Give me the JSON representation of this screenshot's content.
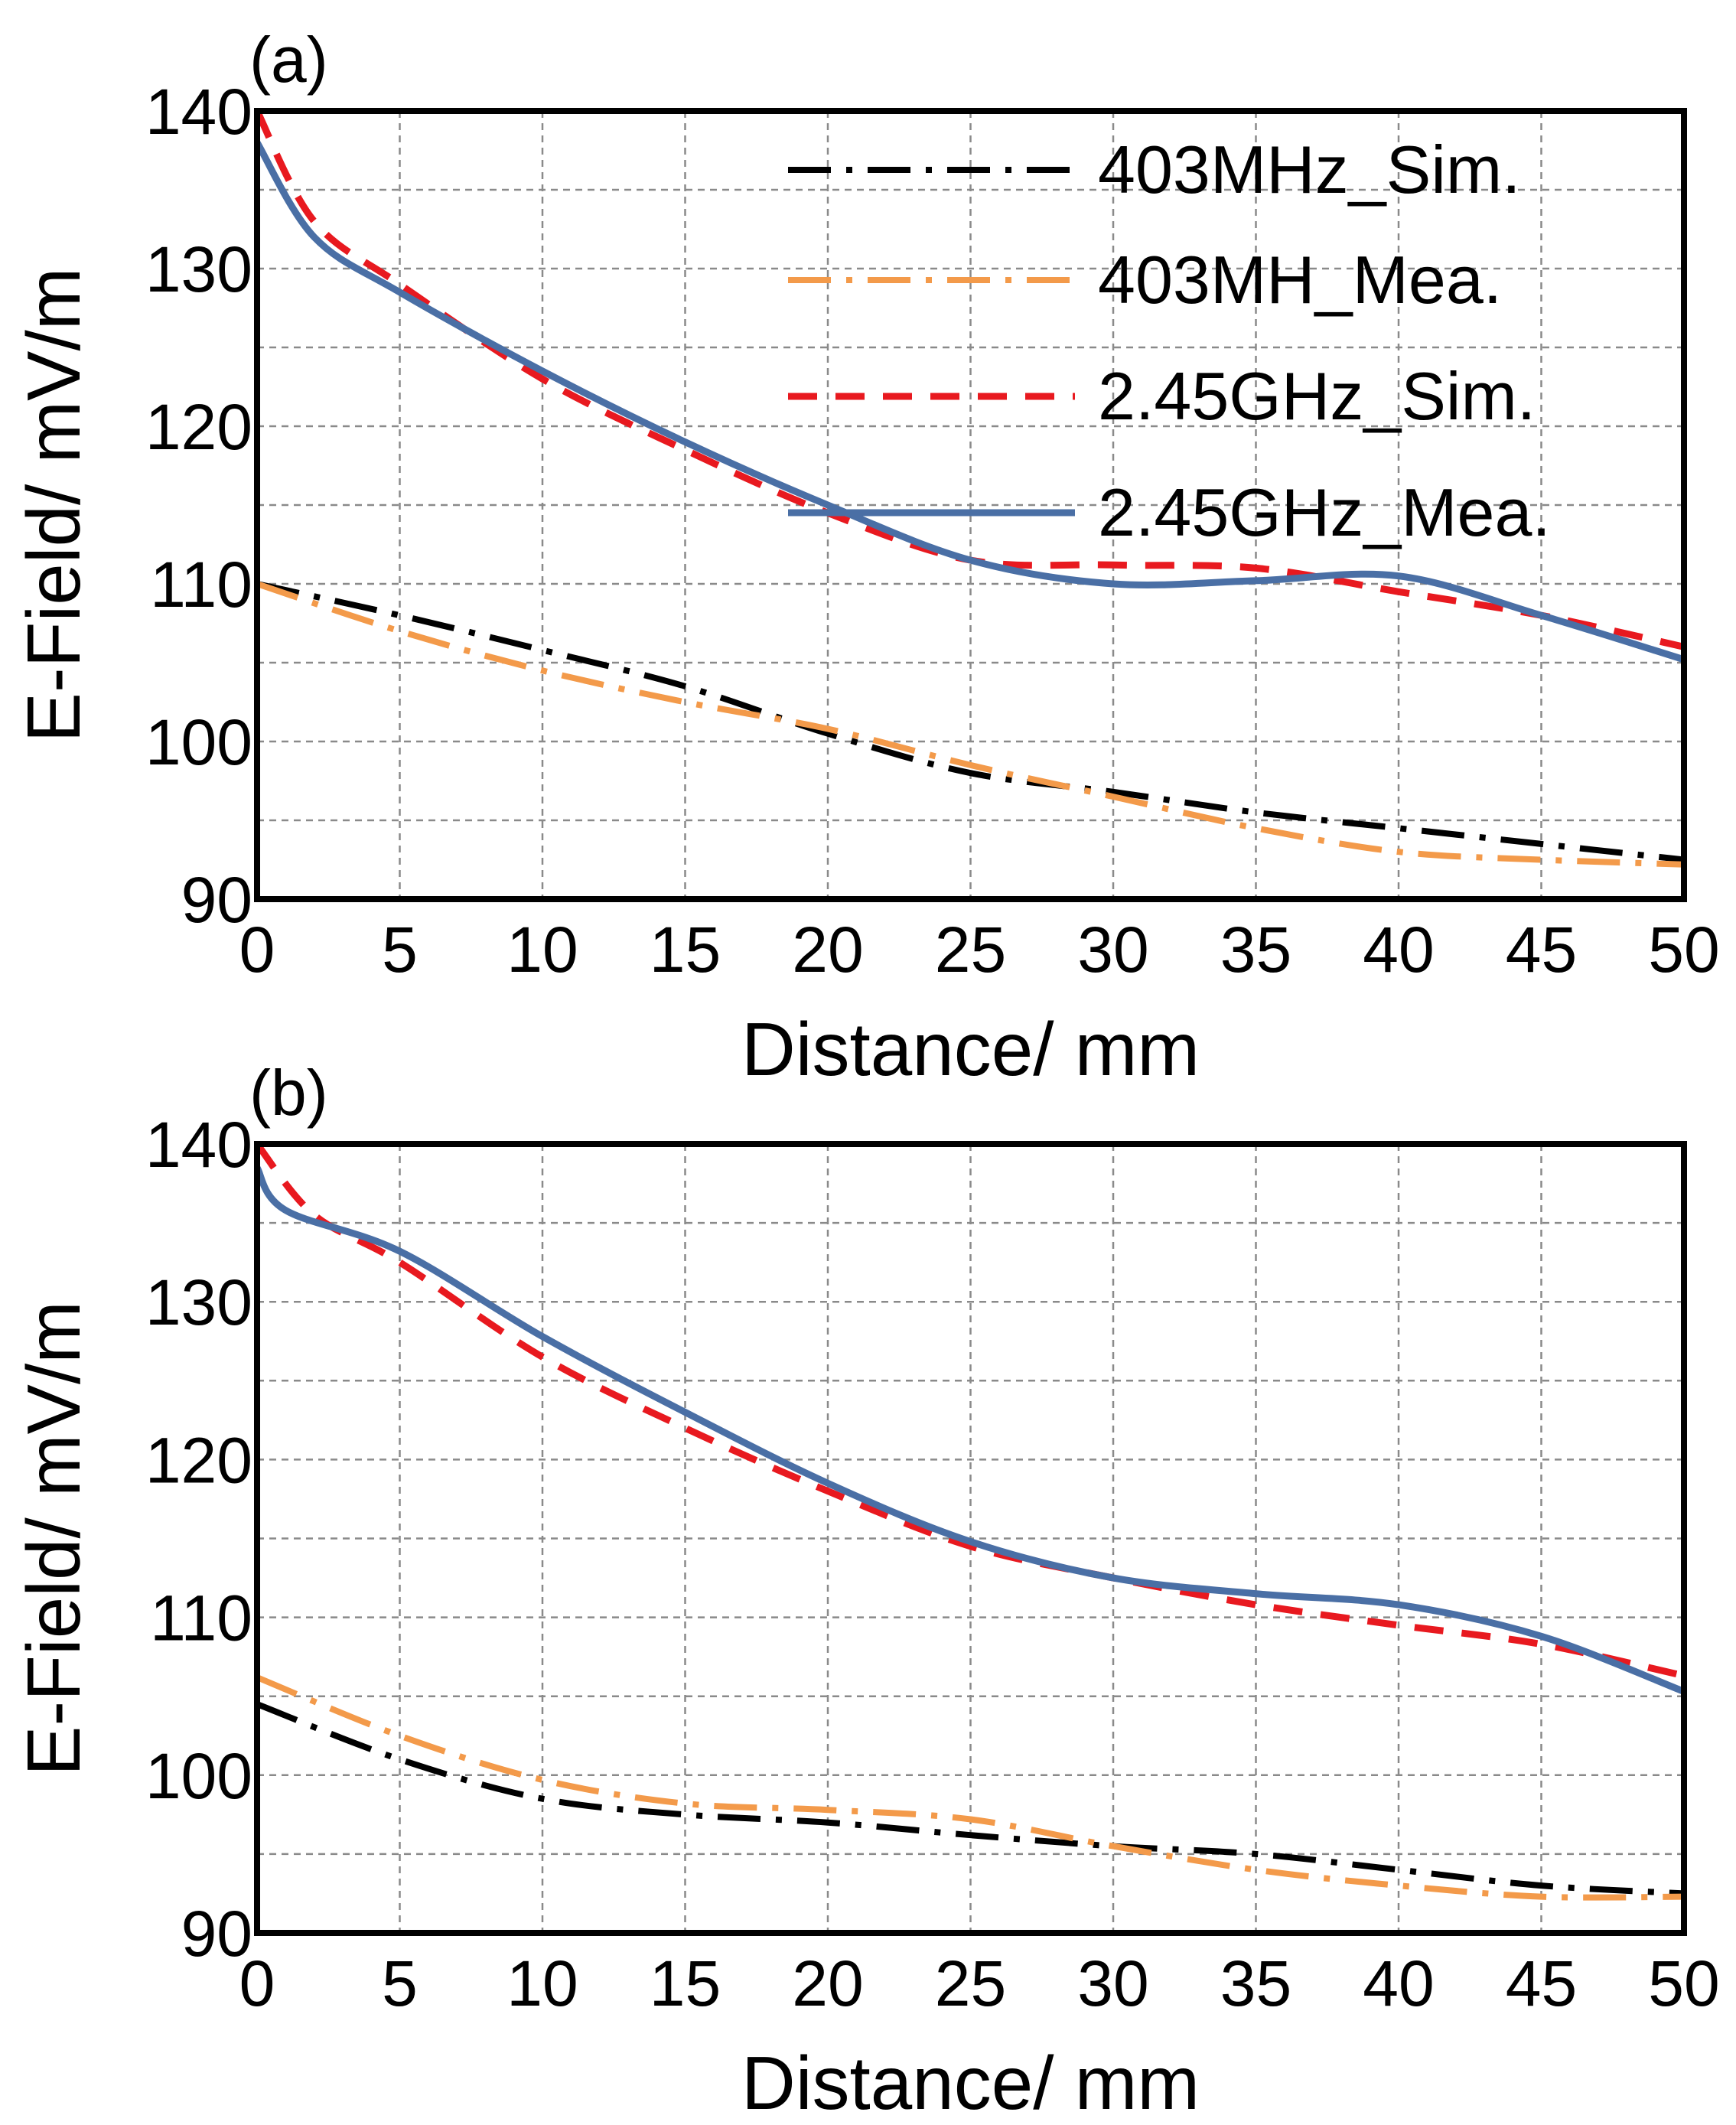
{
  "chart_data": [
    {
      "type": "line",
      "panel_label": "(a)",
      "xlabel": "Distance/ mm",
      "ylabel": "E-Field/ mV/m",
      "xlim": [
        0,
        50
      ],
      "ylim": [
        90,
        140
      ],
      "x_ticks": [
        "0",
        "5",
        "10",
        "15",
        "20",
        "25",
        "30",
        "35",
        "40",
        "45",
        "50"
      ],
      "y_ticks": [
        "90",
        "100",
        "110",
        "120",
        "130",
        "140"
      ],
      "grid": true,
      "legend_position": "top-right",
      "series": [
        {
          "name": "403MHz_Sim.",
          "color": "#000000",
          "dash": "dashdot",
          "x": [
            0,
            5,
            10,
            15,
            20,
            25,
            30,
            35,
            40,
            45,
            50
          ],
          "y": [
            110,
            108,
            105.8,
            103.5,
            100.5,
            98,
            96.8,
            95.5,
            94.5,
            93.5,
            92.5
          ]
        },
        {
          "name": "403MH_Mea.",
          "color": "#f39a4a",
          "dash": "dashdot",
          "x": [
            0,
            5,
            10,
            15,
            20,
            25,
            30,
            35,
            40,
            45,
            50
          ],
          "y": [
            110,
            107,
            104.5,
            102.5,
            100.8,
            98.5,
            96.5,
            94.5,
            93,
            92.5,
            92.2
          ]
        },
        {
          "name": "2.45GHz_Sim.",
          "color": "#e8191f",
          "dash": "dashed",
          "x": [
            0,
            2,
            5,
            10,
            15,
            20,
            25,
            30,
            35,
            40,
            45,
            50
          ],
          "y": [
            140,
            133,
            129,
            123,
            118.5,
            114.5,
            111.5,
            111.2,
            111,
            109.5,
            108,
            106
          ]
        },
        {
          "name": "2.45GHz_Mea.",
          "color": "#4a6fa5",
          "dash": "solid",
          "x": [
            0,
            2,
            5,
            10,
            15,
            20,
            25,
            30,
            35,
            40,
            45,
            50
          ],
          "y": [
            138,
            132,
            128.5,
            123.5,
            119,
            115,
            111.5,
            110,
            110.2,
            110.5,
            108,
            105.2
          ]
        }
      ]
    },
    {
      "type": "line",
      "panel_label": "(b)",
      "xlabel": "Distance/ mm",
      "ylabel": "E-Field/ mV/m",
      "xlim": [
        0,
        50
      ],
      "ylim": [
        90,
        140
      ],
      "x_ticks": [
        "0",
        "5",
        "10",
        "15",
        "20",
        "25",
        "30",
        "35",
        "40",
        "45",
        "50"
      ],
      "y_ticks": [
        "90",
        "100",
        "110",
        "120",
        "130",
        "140"
      ],
      "grid": true,
      "series": [
        {
          "name": "403MHz_Sim.",
          "color": "#000000",
          "dash": "dashdot",
          "x": [
            0,
            5,
            10,
            15,
            20,
            25,
            30,
            35,
            40,
            45,
            50
          ],
          "y": [
            104.5,
            101,
            98.5,
            97.5,
            97,
            96.2,
            95.5,
            95,
            94,
            93,
            92.5
          ]
        },
        {
          "name": "403MH_Mea.",
          "color": "#f39a4a",
          "dash": "dashdot",
          "x": [
            0,
            5,
            10,
            15,
            20,
            25,
            30,
            35,
            40,
            45,
            50
          ],
          "y": [
            106.2,
            102.5,
            99.7,
            98.2,
            97.8,
            97.2,
            95.5,
            94,
            93,
            92.3,
            92.3
          ]
        },
        {
          "name": "2.45GHz_Sim.",
          "color": "#e8191f",
          "dash": "dashed",
          "x": [
            0,
            2,
            5,
            10,
            15,
            20,
            25,
            30,
            35,
            40,
            45,
            50
          ],
          "y": [
            140,
            135.5,
            132.5,
            126.5,
            122,
            118,
            114.5,
            112.5,
            110.8,
            109.5,
            108.3,
            106.3
          ]
        },
        {
          "name": "2.45GHz_Mea.",
          "color": "#4a6fa5",
          "dash": "solid",
          "x": [
            0,
            1,
            5,
            10,
            15,
            20,
            25,
            30,
            35,
            40,
            45,
            50
          ],
          "y": [
            138.5,
            135.8,
            133.2,
            127.8,
            123,
            118.5,
            114.8,
            112.5,
            111.5,
            110.8,
            108.8,
            105.3
          ]
        }
      ]
    }
  ]
}
